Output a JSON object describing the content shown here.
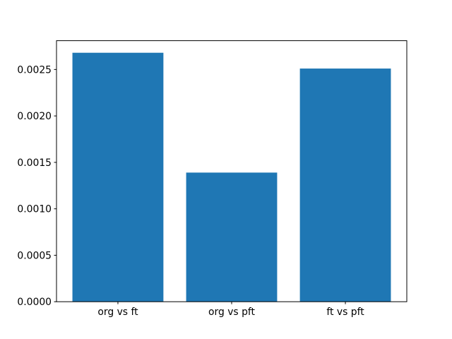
{
  "figure": {
    "background": "#ffffff"
  },
  "chart_data": {
    "type": "bar",
    "title": "",
    "xlabel": "",
    "ylabel": "",
    "categories": [
      "org vs ft",
      "org vs pft",
      "ft vs pft"
    ],
    "values": [
      0.00268,
      0.00139,
      0.00251
    ],
    "bar_color": "#1f77b4",
    "axis_color": "#000000",
    "text_color": "#000000",
    "background_color": "#ffffff",
    "ylim": [
      0,
      0.00281
    ],
    "xlim": [
      -0.54,
      2.54
    ],
    "bar_width": 0.8,
    "yticks": [
      0,
      0.0005,
      0.001,
      0.0015,
      0.002,
      0.0025
    ],
    "ytick_labels": [
      "0.0000",
      "0.0005",
      "0.0010",
      "0.0015",
      "0.0020",
      "0.0025"
    ],
    "grid": false,
    "legend": null
  }
}
